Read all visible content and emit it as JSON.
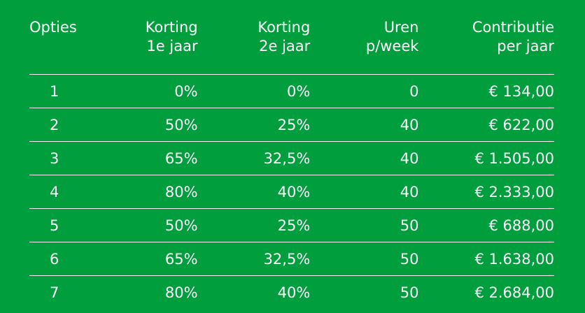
{
  "headers": {
    "opties": "Opties",
    "korting1": [
      "Korting",
      "1e jaar"
    ],
    "korting2": [
      "Korting",
      "2e jaar"
    ],
    "uren": [
      "Uren",
      "p/week"
    ],
    "contributie": [
      "Contributie",
      "per jaar"
    ]
  },
  "rows": [
    {
      "optie": "1",
      "k1": "0%",
      "k2": "0%",
      "uren": "0",
      "contributie": "€ 134,00"
    },
    {
      "optie": "2",
      "k1": "50%",
      "k2": "25%",
      "uren": "40",
      "contributie": "€ 622,00"
    },
    {
      "optie": "3",
      "k1": "65%",
      "k2": "32,5%",
      "uren": "40",
      "contributie": "€ 1.505,00"
    },
    {
      "optie": "4",
      "k1": "80%",
      "k2": "40%",
      "uren": "40",
      "contributie": "€ 2.333,00"
    },
    {
      "optie": "5",
      "k1": "50%",
      "k2": "25%",
      "uren": "50",
      "contributie": "€ 688,00"
    },
    {
      "optie": "6",
      "k1": "65%",
      "k2": "32,5%",
      "uren": "50",
      "contributie": "€ 1.638,00"
    },
    {
      "optie": "7",
      "k1": "80%",
      "k2": "40%",
      "uren": "50",
      "contributie": "€ 2.684,00"
    }
  ],
  "colors": {
    "background": "#009e3d",
    "text": "#ffffff"
  }
}
